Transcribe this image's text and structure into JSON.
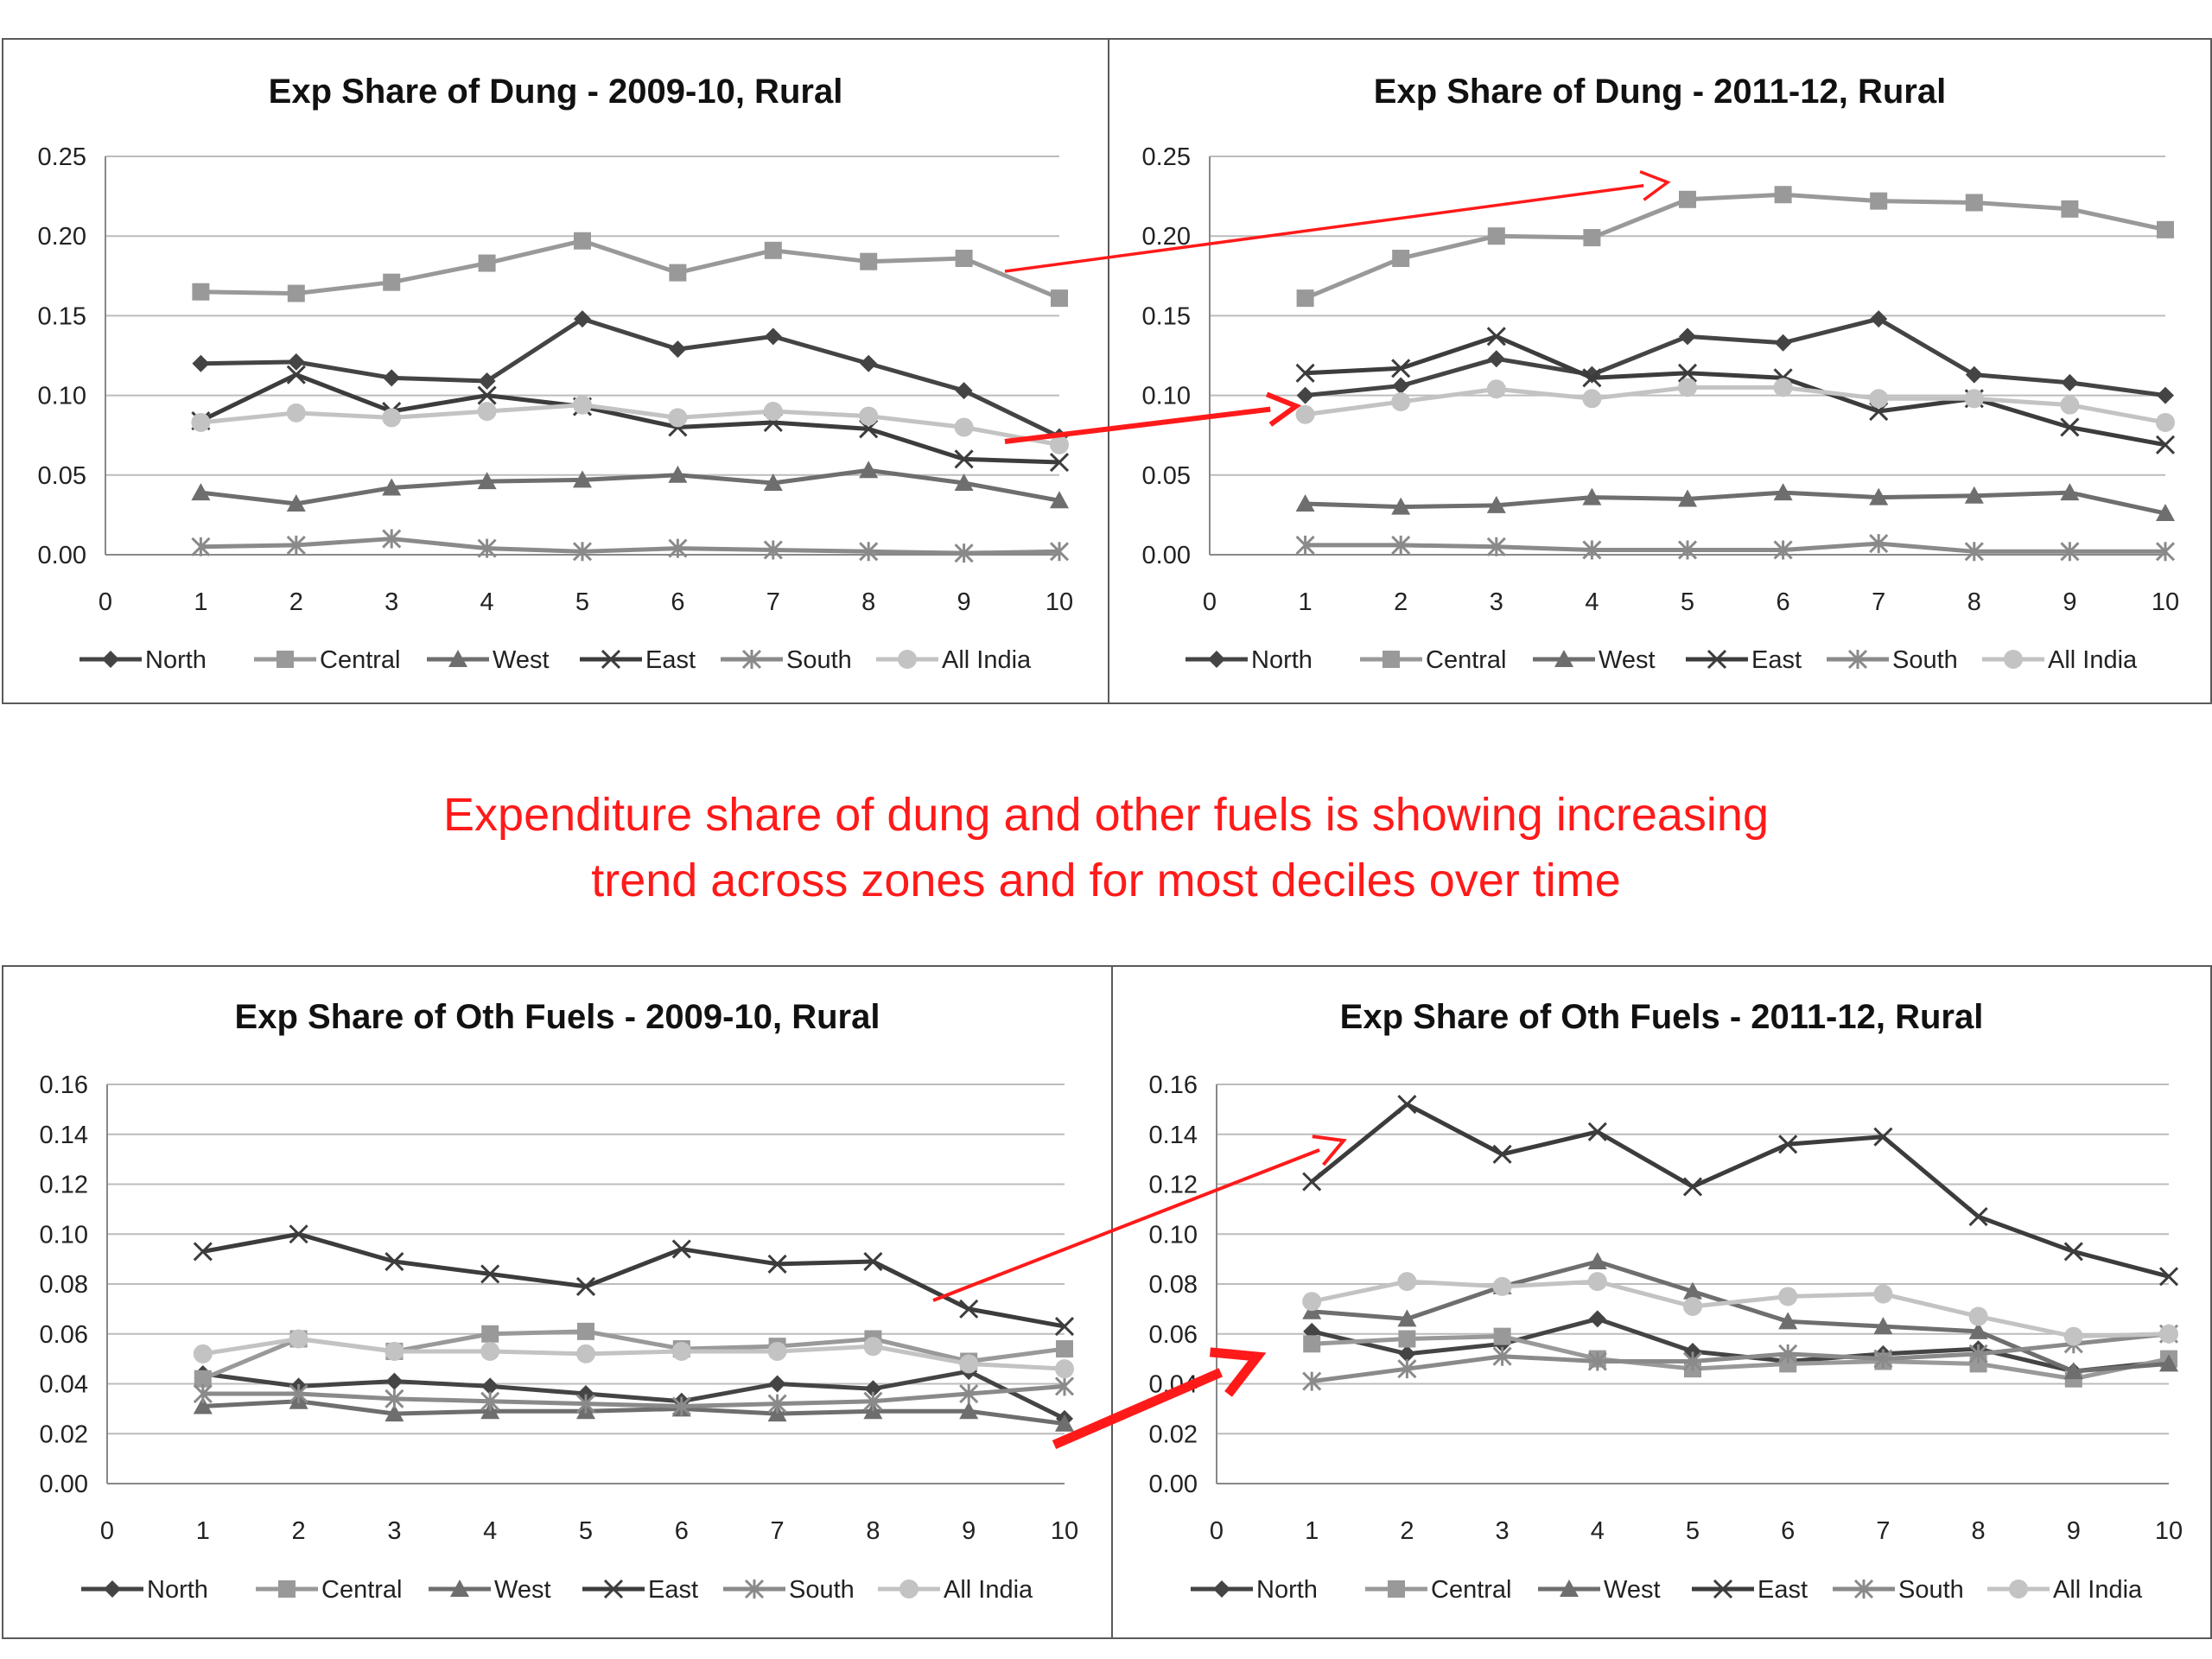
{
  "callout": {
    "line1": "Expenditure share of dung and other fuels is showing increasing",
    "line2": "trend across zones and for most deciles over time"
  },
  "colors": {
    "North": "#444444",
    "Central": "#999999",
    "West": "#6e6e6e",
    "East": "#3c3c3c",
    "South": "#8a8a8a",
    "All India": "#c3c3c3",
    "arrow": "#ff1a1a",
    "grid": "#bcbcbc",
    "axis": "#888888"
  },
  "chart_data": [
    {
      "type": "line",
      "title": "Exp Share of Dung - 2009-10, Rural",
      "x": [
        1,
        2,
        3,
        4,
        5,
        6,
        7,
        8,
        9,
        10
      ],
      "xlim": [
        0,
        10
      ],
      "xticks": [
        "0",
        "1",
        "2",
        "3",
        "4",
        "5",
        "6",
        "7",
        "8",
        "9",
        "10"
      ],
      "ylim": [
        0,
        0.25
      ],
      "yticks": [
        "0.00",
        "0.05",
        "0.10",
        "0.15",
        "0.20",
        "0.25"
      ],
      "grid": true,
      "legend": "bottom",
      "series": [
        {
          "name": "North",
          "marker": "diamond",
          "values": [
            0.12,
            0.121,
            0.111,
            0.109,
            0.148,
            0.129,
            0.137,
            0.12,
            0.103,
            0.074
          ]
        },
        {
          "name": "Central",
          "marker": "square",
          "values": [
            0.165,
            0.164,
            0.171,
            0.183,
            0.197,
            0.177,
            0.191,
            0.184,
            0.186,
            0.161
          ]
        },
        {
          "name": "West",
          "marker": "triangle",
          "values": [
            0.039,
            0.032,
            0.042,
            0.046,
            0.047,
            0.05,
            0.045,
            0.053,
            0.045,
            0.034
          ]
        },
        {
          "name": "East",
          "marker": "x",
          "values": [
            0.084,
            0.113,
            0.09,
            0.1,
            0.093,
            0.08,
            0.083,
            0.079,
            0.06,
            0.058
          ]
        },
        {
          "name": "South",
          "marker": "asterisk",
          "values": [
            0.005,
            0.006,
            0.01,
            0.004,
            0.002,
            0.004,
            0.003,
            0.002,
            0.001,
            0.002
          ]
        },
        {
          "name": "All India",
          "marker": "circle",
          "values": [
            0.083,
            0.089,
            0.086,
            0.09,
            0.094,
            0.086,
            0.09,
            0.087,
            0.08,
            0.069
          ]
        }
      ]
    },
    {
      "type": "line",
      "title": "Exp Share of Dung - 2011-12, Rural",
      "x": [
        1,
        2,
        3,
        4,
        5,
        6,
        7,
        8,
        9,
        10
      ],
      "xlim": [
        0,
        10
      ],
      "xticks": [
        "0",
        "1",
        "2",
        "3",
        "4",
        "5",
        "6",
        "7",
        "8",
        "9",
        "10"
      ],
      "ylim": [
        0,
        0.25
      ],
      "yticks": [
        "0.00",
        "0.05",
        "0.10",
        "0.15",
        "0.20",
        "0.25"
      ],
      "grid": true,
      "legend": "bottom",
      "series": [
        {
          "name": "North",
          "marker": "diamond",
          "values": [
            0.1,
            0.106,
            0.123,
            0.113,
            0.137,
            0.133,
            0.148,
            0.113,
            0.108,
            0.1
          ]
        },
        {
          "name": "Central",
          "marker": "square",
          "values": [
            0.161,
            0.186,
            0.2,
            0.199,
            0.223,
            0.226,
            0.222,
            0.221,
            0.217,
            0.204
          ]
        },
        {
          "name": "West",
          "marker": "triangle",
          "values": [
            0.032,
            0.03,
            0.031,
            0.036,
            0.035,
            0.039,
            0.036,
            0.037,
            0.039,
            0.026
          ]
        },
        {
          "name": "East",
          "marker": "x",
          "values": [
            0.114,
            0.117,
            0.137,
            0.111,
            0.114,
            0.111,
            0.09,
            0.098,
            0.08,
            0.069
          ]
        },
        {
          "name": "South",
          "marker": "asterisk",
          "values": [
            0.006,
            0.006,
            0.005,
            0.003,
            0.003,
            0.003,
            0.007,
            0.002,
            0.002,
            0.002
          ]
        },
        {
          "name": "All India",
          "marker": "circle",
          "values": [
            0.088,
            0.096,
            0.104,
            0.098,
            0.105,
            0.105,
            0.098,
            0.098,
            0.094,
            0.083
          ]
        }
      ]
    },
    {
      "type": "line",
      "title": "Exp Share of Oth Fuels - 2009-10, Rural",
      "x": [
        1,
        2,
        3,
        4,
        5,
        6,
        7,
        8,
        9,
        10
      ],
      "xlim": [
        0,
        10
      ],
      "xticks": [
        "0",
        "1",
        "2",
        "3",
        "4",
        "5",
        "6",
        "7",
        "8",
        "9",
        "10"
      ],
      "ylim": [
        0,
        0.16
      ],
      "yticks": [
        "0.00",
        "0.02",
        "0.04",
        "0.06",
        "0.08",
        "0.10",
        "0.12",
        "0.14",
        "0.16"
      ],
      "grid": true,
      "legend": "bottom",
      "series": [
        {
          "name": "North",
          "marker": "diamond",
          "values": [
            0.044,
            0.039,
            0.041,
            0.039,
            0.036,
            0.033,
            0.04,
            0.038,
            0.045,
            0.026
          ]
        },
        {
          "name": "Central",
          "marker": "square",
          "values": [
            0.042,
            0.058,
            0.053,
            0.06,
            0.061,
            0.054,
            0.055,
            0.058,
            0.049,
            0.054
          ]
        },
        {
          "name": "West",
          "marker": "triangle",
          "values": [
            0.031,
            0.033,
            0.028,
            0.029,
            0.029,
            0.03,
            0.028,
            0.029,
            0.029,
            0.024
          ]
        },
        {
          "name": "East",
          "marker": "x",
          "values": [
            0.093,
            0.1,
            0.089,
            0.084,
            0.079,
            0.094,
            0.088,
            0.089,
            0.07,
            0.063
          ]
        },
        {
          "name": "South",
          "marker": "asterisk",
          "values": [
            0.036,
            0.036,
            0.034,
            0.033,
            0.032,
            0.031,
            0.032,
            0.033,
            0.036,
            0.039
          ]
        },
        {
          "name": "All India",
          "marker": "circle",
          "values": [
            0.052,
            0.058,
            0.053,
            0.053,
            0.052,
            0.053,
            0.053,
            0.055,
            0.048,
            0.046
          ]
        }
      ]
    },
    {
      "type": "line",
      "title": "Exp Share of Oth Fuels - 2011-12, Rural",
      "x": [
        1,
        2,
        3,
        4,
        5,
        6,
        7,
        8,
        9,
        10
      ],
      "xlim": [
        0,
        10
      ],
      "xticks": [
        "0",
        "1",
        "2",
        "3",
        "4",
        "5",
        "6",
        "7",
        "8",
        "9",
        "10"
      ],
      "ylim": [
        0,
        0.16
      ],
      "yticks": [
        "0.00",
        "0.02",
        "0.04",
        "0.06",
        "0.08",
        "0.10",
        "0.12",
        "0.14",
        "0.16"
      ],
      "grid": true,
      "legend": "bottom",
      "series": [
        {
          "name": "North",
          "marker": "diamond",
          "values": [
            0.061,
            0.052,
            0.056,
            0.066,
            0.053,
            0.049,
            0.052,
            0.054,
            0.045,
            0.049
          ]
        },
        {
          "name": "Central",
          "marker": "square",
          "values": [
            0.056,
            0.058,
            0.059,
            0.05,
            0.046,
            0.048,
            0.049,
            0.048,
            0.042,
            0.05
          ]
        },
        {
          "name": "West",
          "marker": "triangle",
          "values": [
            0.069,
            0.066,
            0.079,
            0.089,
            0.077,
            0.065,
            0.063,
            0.061,
            0.045,
            0.048
          ]
        },
        {
          "name": "East",
          "marker": "x",
          "values": [
            0.121,
            0.152,
            0.132,
            0.141,
            0.119,
            0.136,
            0.139,
            0.107,
            0.093,
            0.083
          ]
        },
        {
          "name": "South",
          "marker": "asterisk",
          "values": [
            0.041,
            0.046,
            0.051,
            0.049,
            0.049,
            0.052,
            0.05,
            0.052,
            0.056,
            0.06
          ]
        },
        {
          "name": "All India",
          "marker": "circle",
          "values": [
            0.073,
            0.081,
            0.079,
            0.081,
            0.071,
            0.075,
            0.076,
            0.067,
            0.059,
            0.06
          ]
        }
      ]
    }
  ]
}
